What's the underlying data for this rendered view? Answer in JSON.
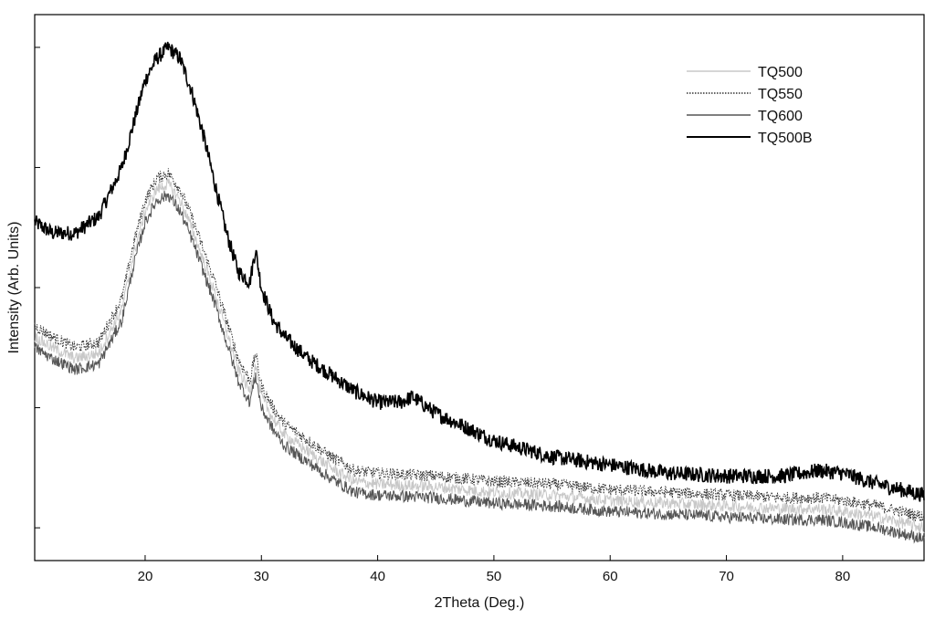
{
  "chart_data": {
    "type": "line",
    "xlabel": "2Theta (Deg.)",
    "ylabel": "Intensity (Arb. Units)",
    "xlim": [
      10.5,
      87
    ],
    "ylim": [
      0,
      1
    ],
    "x_ticks": [
      20,
      30,
      40,
      50,
      60,
      70,
      80
    ],
    "y_ticks_labeled": false,
    "grid": false,
    "legend_position": "top-right",
    "series": [
      {
        "name": "TQ500",
        "color": "#c8c8c8",
        "style": "solid",
        "x": [
          10.5,
          12,
          14,
          16,
          18,
          19,
          20,
          21,
          22,
          23,
          24,
          25,
          26,
          27,
          28,
          29,
          29.5,
          30,
          31,
          32,
          34,
          36,
          38,
          40,
          45,
          50,
          55,
          60,
          65,
          70,
          75,
          78,
          80,
          83,
          85,
          87
        ],
        "y": [
          0.41,
          0.39,
          0.37,
          0.38,
          0.46,
          0.56,
          0.64,
          0.68,
          0.69,
          0.66,
          0.61,
          0.55,
          0.49,
          0.42,
          0.35,
          0.31,
          0.36,
          0.3,
          0.26,
          0.23,
          0.2,
          0.17,
          0.145,
          0.14,
          0.135,
          0.125,
          0.12,
          0.11,
          0.105,
          0.1,
          0.095,
          0.095,
          0.09,
          0.08,
          0.07,
          0.06
        ]
      },
      {
        "name": "TQ550",
        "color": "#333333",
        "style": "dotted",
        "x": [
          10.5,
          12,
          14,
          16,
          18,
          19,
          20,
          21,
          22,
          23,
          24,
          25,
          26,
          27,
          28,
          29,
          29.5,
          30,
          31,
          32,
          34,
          36,
          38,
          40,
          45,
          50,
          55,
          60,
          65,
          70,
          75,
          78,
          80,
          83,
          85,
          87
        ],
        "y": [
          0.43,
          0.41,
          0.39,
          0.4,
          0.48,
          0.58,
          0.66,
          0.7,
          0.71,
          0.68,
          0.63,
          0.57,
          0.51,
          0.44,
          0.37,
          0.33,
          0.38,
          0.32,
          0.28,
          0.25,
          0.22,
          0.19,
          0.165,
          0.16,
          0.155,
          0.145,
          0.14,
          0.13,
          0.125,
          0.12,
          0.115,
          0.115,
          0.11,
          0.1,
          0.09,
          0.08
        ]
      },
      {
        "name": "TQ600",
        "color": "#555555",
        "style": "solid",
        "x": [
          10.5,
          12,
          14,
          16,
          18,
          19,
          20,
          21,
          22,
          23,
          24,
          25,
          26,
          27,
          28,
          29,
          29.5,
          30,
          31,
          32,
          34,
          36,
          38,
          40,
          45,
          50,
          55,
          60,
          65,
          70,
          75,
          78,
          80,
          83,
          85,
          87
        ],
        "y": [
          0.39,
          0.37,
          0.35,
          0.36,
          0.44,
          0.54,
          0.62,
          0.66,
          0.67,
          0.64,
          0.59,
          0.53,
          0.47,
          0.4,
          0.33,
          0.29,
          0.34,
          0.28,
          0.24,
          0.21,
          0.18,
          0.15,
          0.125,
          0.12,
          0.115,
          0.105,
          0.1,
          0.09,
          0.085,
          0.08,
          0.075,
          0.075,
          0.07,
          0.06,
          0.05,
          0.04
        ]
      },
      {
        "name": "TQ500B",
        "color": "#000000",
        "style": "solid",
        "x": [
          10.5,
          12,
          14,
          16,
          18,
          19,
          20,
          21,
          22,
          23,
          24,
          25,
          26,
          27,
          28,
          29,
          29.5,
          30,
          31,
          32,
          34,
          36,
          38,
          40,
          42,
          43,
          45,
          47,
          50,
          55,
          60,
          65,
          70,
          75,
          78,
          80,
          83,
          85,
          87
        ],
        "y": [
          0.62,
          0.6,
          0.6,
          0.63,
          0.72,
          0.8,
          0.88,
          0.92,
          0.94,
          0.92,
          0.86,
          0.78,
          0.69,
          0.6,
          0.53,
          0.51,
          0.57,
          0.5,
          0.44,
          0.41,
          0.37,
          0.34,
          0.31,
          0.29,
          0.29,
          0.3,
          0.27,
          0.25,
          0.22,
          0.19,
          0.175,
          0.16,
          0.155,
          0.155,
          0.165,
          0.16,
          0.14,
          0.13,
          0.12
        ]
      }
    ]
  }
}
